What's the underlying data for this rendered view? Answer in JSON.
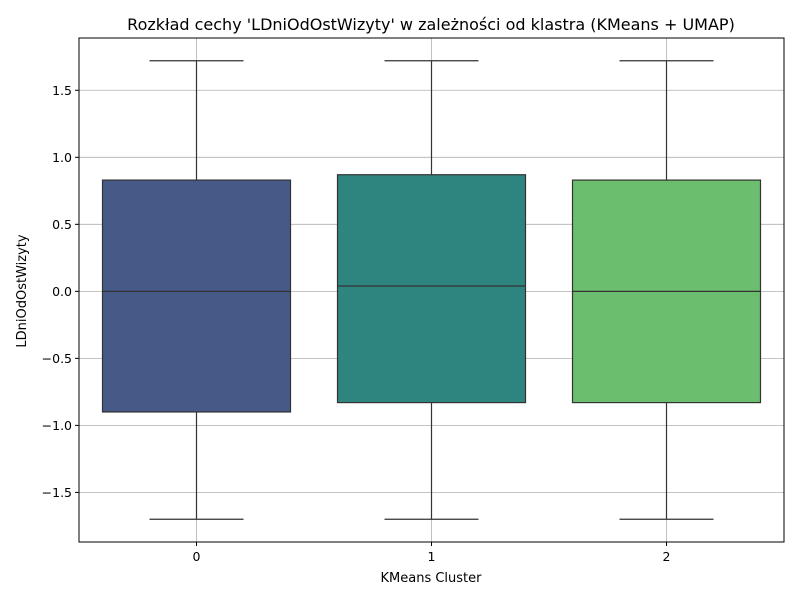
{
  "chart_data": {
    "type": "box",
    "title": "Rozkład cechy 'LDniOdOstWizyty' w zależności od klastra (KMeans + UMAP)",
    "xlabel": "KMeans Cluster",
    "ylabel": "LDniOdOstWizyty",
    "ylim": [
      -1.87,
      1.89
    ],
    "yticks": [
      -1.5,
      -1.0,
      -0.5,
      0.0,
      0.5,
      1.0,
      1.5
    ],
    "ytick_labels": [
      "−1.5",
      "−1.0",
      "−0.5",
      "0.0",
      "0.5",
      "1.0",
      "1.5"
    ],
    "grid": true,
    "categories": [
      "0",
      "1",
      "2"
    ],
    "boxes": [
      {
        "category": "0",
        "whisker_low": -1.7,
        "q1": -0.9,
        "median": 0.0,
        "q3": 0.83,
        "whisker_high": 1.72,
        "color": "#465a87"
      },
      {
        "category": "1",
        "whisker_low": -1.7,
        "q1": -0.83,
        "median": 0.04,
        "q3": 0.87,
        "whisker_high": 1.72,
        "color": "#2e857f"
      },
      {
        "category": "2",
        "whisker_low": -1.7,
        "q1": -0.83,
        "median": 0.0,
        "q3": 0.83,
        "whisker_high": 1.72,
        "color": "#6abe6e"
      }
    ]
  }
}
